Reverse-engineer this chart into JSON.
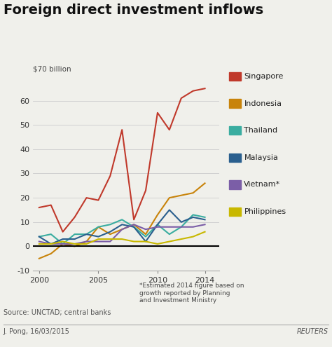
{
  "title": "Foreign direct investment inflows",
  "ylabel": "$70 billion",
  "ylim": [
    -10,
    70
  ],
  "yticks": [
    -10,
    0,
    10,
    20,
    30,
    40,
    50,
    60
  ],
  "xlim": [
    1999.5,
    2015.2
  ],
  "xticks": [
    2000,
    2005,
    2010,
    2014
  ],
  "bg_color": "#f0f0eb",
  "source_text": "Source: UNCTAD; central banks",
  "credit_text": "J. Pong, 16/03/2015",
  "reuters_text": "REUTERS",
  "footnote_text": "*Estimated 2014 figure based on\ngrowth reported by Planning\nand Investment Ministry",
  "series": {
    "Singapore": {
      "color": "#c0392b",
      "label": "Singapore",
      "years": [
        2000,
        2001,
        2002,
        2003,
        2004,
        2005,
        2006,
        2007,
        2008,
        2009,
        2010,
        2011,
        2012,
        2013,
        2014
      ],
      "values": [
        16,
        17,
        6,
        12,
        20,
        19,
        29,
        48,
        11,
        23,
        55,
        48,
        61,
        64,
        65
      ]
    },
    "Indonesia": {
      "color": "#c8830a",
      "label": "Indonesia",
      "years": [
        2000,
        2001,
        2002,
        2003,
        2004,
        2005,
        2006,
        2007,
        2008,
        2009,
        2010,
        2011,
        2012,
        2013,
        2014
      ],
      "values": [
        -5,
        -3,
        1,
        0,
        2,
        8,
        5,
        7,
        9,
        5,
        13,
        20,
        21,
        22,
        26
      ]
    },
    "Thailand": {
      "color": "#3aada0",
      "label": "Thailand",
      "years": [
        2000,
        2001,
        2002,
        2003,
        2004,
        2005,
        2006,
        2007,
        2008,
        2009,
        2010,
        2011,
        2012,
        2013,
        2014
      ],
      "values": [
        4,
        5,
        1,
        5,
        5,
        8,
        9,
        11,
        8,
        4,
        9,
        5,
        8,
        13,
        12
      ]
    },
    "Malaysia": {
      "color": "#2a5f8e",
      "label": "Malaysia",
      "years": [
        2000,
        2001,
        2002,
        2003,
        2004,
        2005,
        2006,
        2007,
        2008,
        2009,
        2010,
        2011,
        2012,
        2013,
        2014
      ],
      "values": [
        4,
        1,
        3,
        3,
        5,
        4,
        6,
        9,
        8,
        2,
        9,
        15,
        10,
        12,
        11
      ]
    },
    "Vietnam": {
      "color": "#7b5ea7",
      "label": "Vietnam*",
      "years": [
        2000,
        2001,
        2002,
        2003,
        2004,
        2005,
        2006,
        2007,
        2008,
        2009,
        2010,
        2011,
        2012,
        2013,
        2014
      ],
      "values": [
        2,
        1,
        1,
        1,
        2,
        2,
        2,
        7,
        9,
        7,
        8,
        8,
        8,
        8,
        9
      ]
    },
    "Philippines": {
      "color": "#c8b800",
      "label": "Philippines",
      "years": [
        2000,
        2001,
        2002,
        2003,
        2004,
        2005,
        2006,
        2007,
        2008,
        2009,
        2010,
        2011,
        2012,
        2013,
        2014
      ],
      "values": [
        1,
        1,
        2,
        1,
        1,
        3,
        3,
        3,
        2,
        2,
        1,
        2,
        3,
        4,
        6
      ]
    }
  }
}
